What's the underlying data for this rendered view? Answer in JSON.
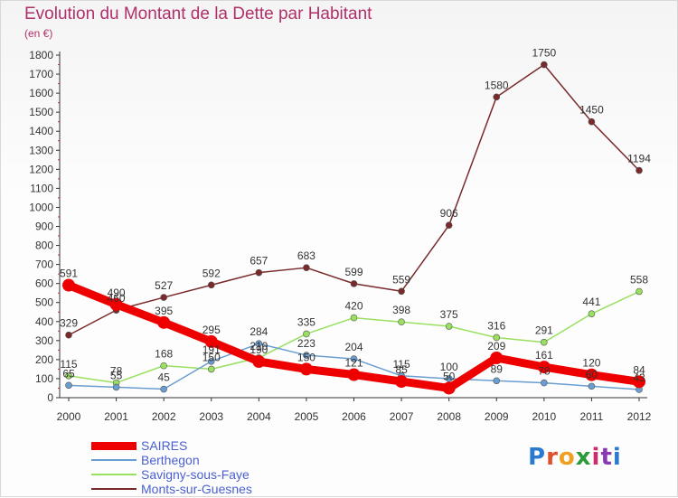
{
  "title": "Evolution du Montant de la Dette par Habitant",
  "unit": "(en €)",
  "logo": {
    "letters": [
      "P",
      "r",
      "o",
      "x",
      "i",
      "t",
      "i"
    ],
    "colors": [
      "#2a7bd0",
      "#e0502a",
      "#f0a020",
      "#2a9a3a",
      "#d02a6a",
      "#8a3ab0",
      "#2a7bd0"
    ]
  },
  "chart_data": {
    "type": "line",
    "title": "Evolution du Montant de la Dette par Habitant",
    "ylabel": "(en €)",
    "x": [
      "2000",
      "2001",
      "2002",
      "2003",
      "2004",
      "2005",
      "2006",
      "2007",
      "2008",
      "2009",
      "2010",
      "2011",
      "2012"
    ],
    "ylim": [
      0,
      1800
    ],
    "yticks": [
      0,
      100,
      200,
      300,
      400,
      500,
      600,
      700,
      800,
      900,
      1000,
      1100,
      1200,
      1300,
      1400,
      1500,
      1600,
      1700,
      1800
    ],
    "grid": false,
    "legend_position": "bottom-left",
    "series": [
      {
        "name": "SAIRES",
        "color": "#ee0000",
        "values": [
          591,
          490,
          395,
          295,
          190,
          150,
          121,
          85,
          50,
          209,
          161,
          120,
          84
        ],
        "labels": true
      },
      {
        "name": "Berthegon",
        "color": "#6a9ed0",
        "values": [
          65,
          55,
          45,
          191,
          284,
          223,
          204,
          115,
          100,
          89,
          78,
          60,
          43
        ],
        "labels": true
      },
      {
        "name": "Savigny-sous-Faye",
        "color": "#99e060",
        "values": [
          115,
          78,
          168,
          150,
          210,
          335,
          420,
          398,
          375,
          316,
          291,
          441,
          558
        ],
        "labels": true
      },
      {
        "name": "Monts-sur-Guesnes",
        "color": "#7a2a2a",
        "values": [
          329,
          460,
          527,
          592,
          657,
          683,
          599,
          559,
          906,
          1580,
          1750,
          1450,
          1194
        ],
        "labels": true
      }
    ]
  }
}
